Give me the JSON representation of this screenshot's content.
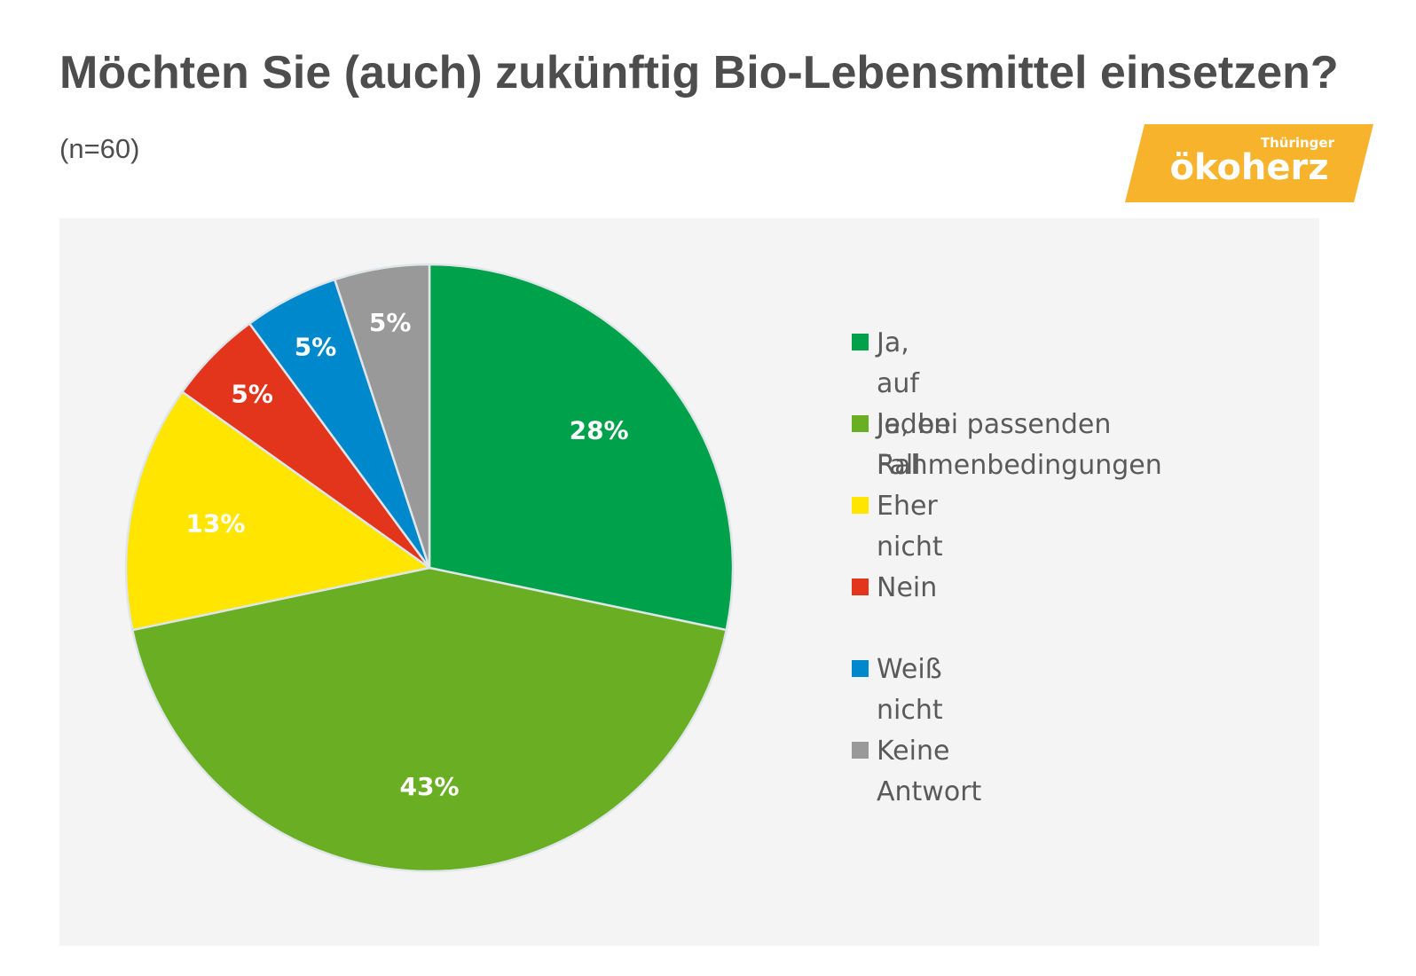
{
  "title": "Möchten Sie (auch) zukünftig Bio-Lebensmittel einsetzen?",
  "subtitle": "(n=60)",
  "logo": {
    "small_text": "Thüringer",
    "main_text": "ökoherz",
    "color": "#f7b32b"
  },
  "chart_data": {
    "type": "pie",
    "title": "Möchten Sie (auch) zukünftig Bio-Lebensmittel einsetzen?",
    "start_angle": "12 o'clock",
    "direction": "clockwise",
    "legend_position": "right",
    "slices": [
      {
        "label": "Ja, auf jeden Fall",
        "value": 28,
        "display": "28%",
        "color": "#00a14b"
      },
      {
        "label": "Ja, bei passenden\nRahmenbedingungen",
        "value": 43,
        "display": "43%",
        "color": "#6aae24"
      },
      {
        "label": "Eher nicht",
        "value": 13,
        "display": "13%",
        "color": "#ffe500"
      },
      {
        "label": "Nein",
        "value": 5,
        "display": "5%",
        "color": "#e3341c"
      },
      {
        "label": "Weiß nicht",
        "value": 5,
        "display": "5%",
        "color": "#0088cc"
      },
      {
        "label": "Keine Antwort",
        "value": 5,
        "display": "5%",
        "color": "#999999"
      }
    ]
  }
}
